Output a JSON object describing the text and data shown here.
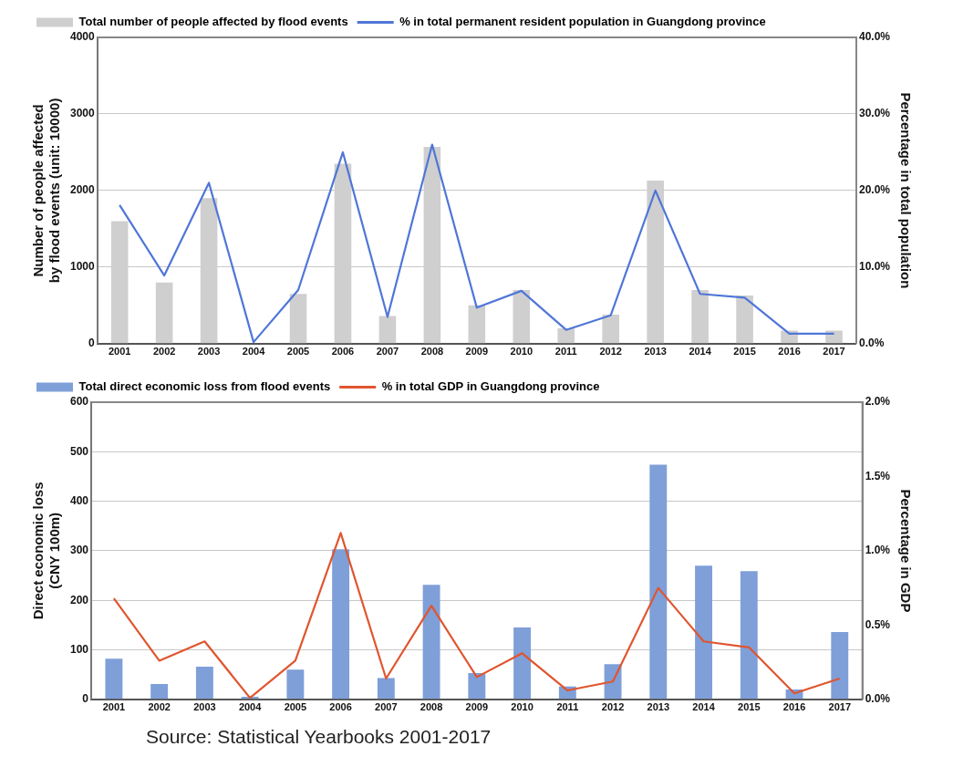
{
  "chart_data": [
    {
      "type": "bar",
      "categories": [
        "2001",
        "2002",
        "2003",
        "2004",
        "2005",
        "2006",
        "2007",
        "2008",
        "2009",
        "2010",
        "2011",
        "2012",
        "2013",
        "2014",
        "2015",
        "2016",
        "2017"
      ],
      "ylabel": "Number of people affected\nby flood events (unit: 10000)",
      "y2label": "Percentage in total population",
      "series": [
        {
          "name": "Total number of people affected by flood events",
          "color": "#cfcfcf",
          "values": [
            1600,
            800,
            1900,
            null,
            650,
            2350,
            360,
            2570,
            500,
            700,
            200,
            380,
            2130,
            700,
            630,
            170,
            170
          ]
        },
        {
          "type": "line",
          "axis": "y2",
          "name": "% in total permanent resident population in Guangdong province",
          "color": "#4f76d8",
          "values": [
            18.1,
            8.9,
            21,
            0.2,
            7,
            25,
            3.5,
            26,
            4.7,
            6.9,
            1.8,
            3.7,
            20,
            6.5,
            6,
            1.3,
            1.3
          ]
        }
      ],
      "ylim": [
        0,
        4000
      ],
      "yticks": [
        0,
        1000,
        2000,
        3000,
        4000
      ],
      "y2lim": [
        0,
        40
      ],
      "y2ticks": [
        {
          "value": 0,
          "label": "0.0%"
        },
        {
          "value": 10,
          "label": "10.0%"
        },
        {
          "value": 20,
          "label": "20.0%"
        },
        {
          "value": 30,
          "label": "30.0%"
        },
        {
          "value": 40,
          "label": "40.0%"
        }
      ],
      "grid": "y",
      "legend": "top left",
      "marker": "none"
    },
    {
      "type": "bar",
      "categories": [
        "2001",
        "2002",
        "2003",
        "2004",
        "2005",
        "2006",
        "2007",
        "2008",
        "2009",
        "2010",
        "2011",
        "2012",
        "2013",
        "2014",
        "2015",
        "2016",
        "2017"
      ],
      "ylabel": "Direct economic loss\n(CNY 100m)",
      "y2label": "Percentage in GDP",
      "series": [
        {
          "name": "Total direct economic loss from flood events",
          "color": "#7f9fd8",
          "values": [
            82,
            31,
            66,
            5,
            60,
            303,
            43,
            231,
            53,
            145,
            26,
            71,
            474,
            270,
            259,
            20,
            136
          ]
        },
        {
          "type": "line",
          "axis": "y2",
          "name": "% in total GDP in Guangdong province",
          "color": "#e0552f",
          "values": [
            0.68,
            0.26,
            0.39,
            0.01,
            0.26,
            1.12,
            0.14,
            0.63,
            0.15,
            0.31,
            0.06,
            0.12,
            0.75,
            0.39,
            0.35,
            0.04,
            0.14
          ]
        }
      ],
      "ylim": [
        0,
        600
      ],
      "yticks": [
        0,
        100,
        200,
        300,
        400,
        500,
        600
      ],
      "y2lim": [
        0,
        2
      ],
      "y2ticks": [
        {
          "value": 0,
          "label": "0.0%"
        },
        {
          "value": 0.5,
          "label": "0.5%"
        },
        {
          "value": 1,
          "label": "1.0%"
        },
        {
          "value": 1.5,
          "label": "1.5%"
        },
        {
          "value": 2,
          "label": "2.0%"
        }
      ],
      "grid": "y",
      "legend": "top left",
      "marker": "none",
      "annotations": [
        "Source: Statistical Yearbooks 2001-2017"
      ]
    }
  ]
}
